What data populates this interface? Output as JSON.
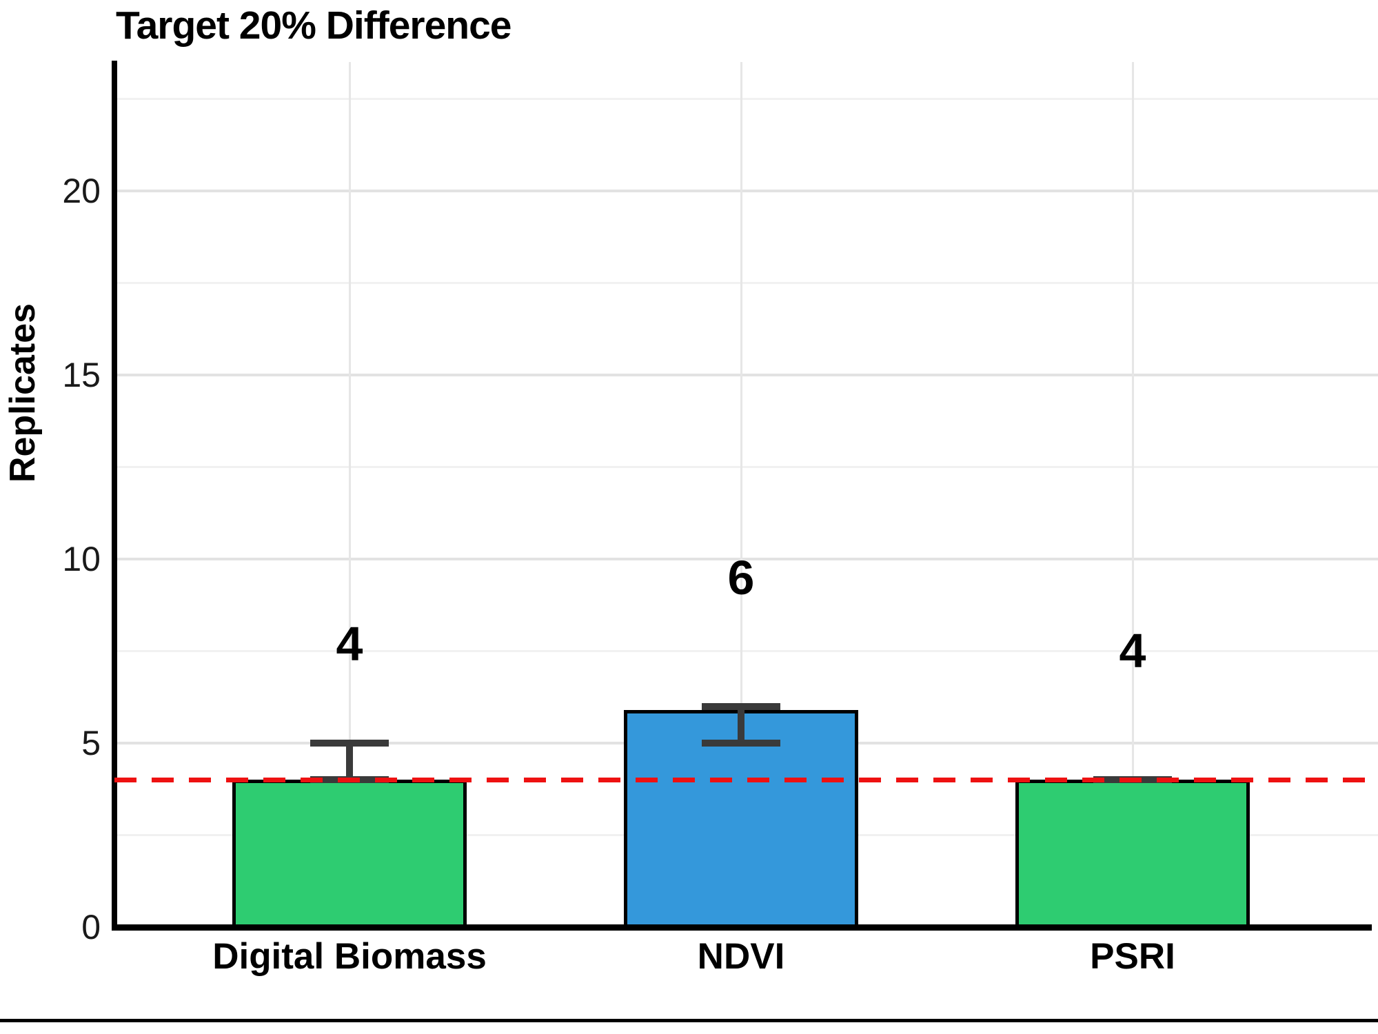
{
  "chart_data": {
    "type": "bar",
    "title": "Target 20% Difference",
    "ylabel": "Replicates",
    "xlabel": "",
    "categories": [
      "Digital Biomass",
      "NDVI",
      "PSRI"
    ],
    "values": [
      4,
      5.9,
      4
    ],
    "bar_labels": [
      "4",
      "6",
      "4"
    ],
    "error_low": [
      4,
      5,
      4
    ],
    "error_high": [
      5,
      6,
      4
    ],
    "bar_colors": [
      "#2ECC71",
      "#3498DB",
      "#2ECC71"
    ],
    "bar_border_color": "#000000",
    "error_bar_color": "#3A3A3A",
    "reference_line": {
      "y": 4,
      "color": "#EE1111",
      "style": "dashed"
    },
    "y_ticks": [
      0,
      5,
      10,
      15,
      20
    ],
    "y_minor_ticks": [
      2.5,
      7.5,
      12.5,
      17.5,
      22.5
    ],
    "ylim": [
      0,
      23.5
    ],
    "label_y_values": [
      7.7,
      9.5,
      7.5
    ],
    "grid": true,
    "legend": "none"
  }
}
